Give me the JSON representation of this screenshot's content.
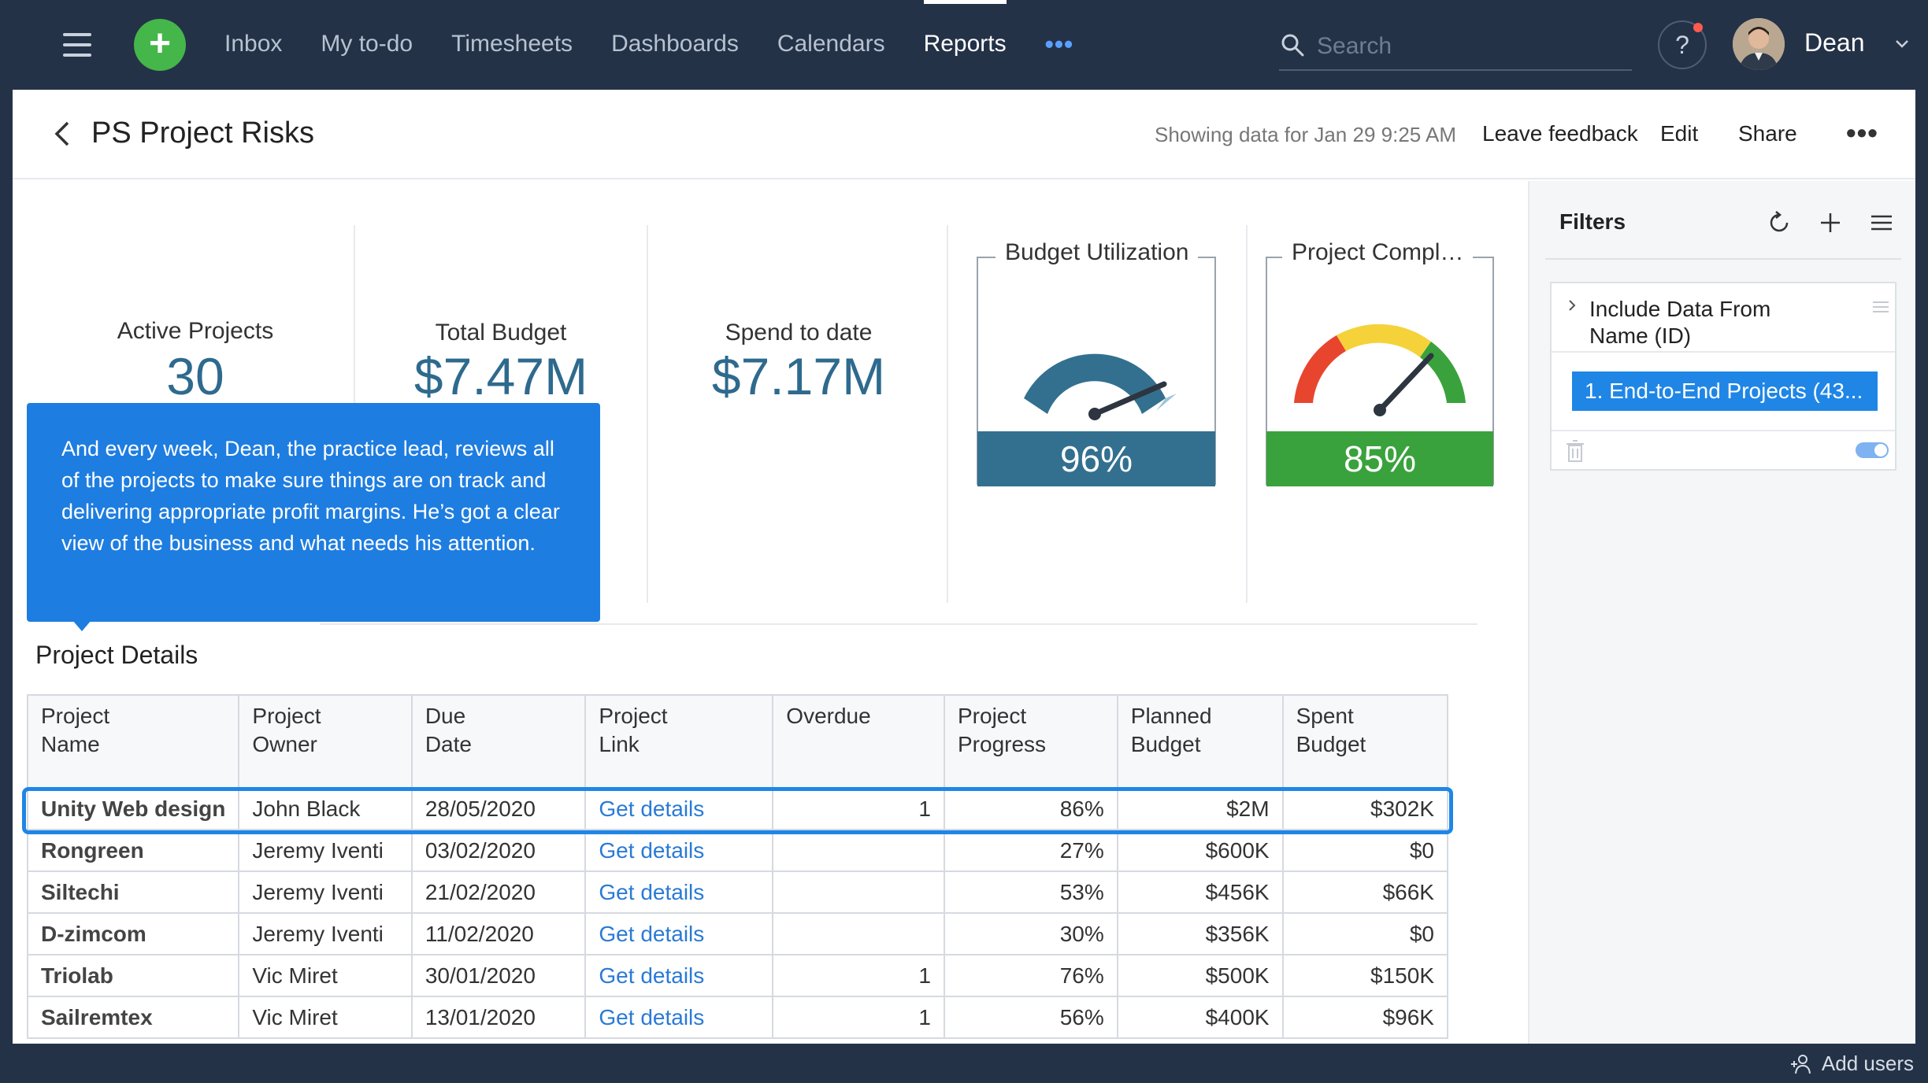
{
  "topbar": {
    "nav": [
      {
        "label": "Inbox"
      },
      {
        "label": "My to-do"
      },
      {
        "label": "Timesheets"
      },
      {
        "label": "Dashboards"
      },
      {
        "label": "Calendars"
      },
      {
        "label": "Reports",
        "active": true
      }
    ],
    "more_label": "•••",
    "search_placeholder": "Search",
    "help_label": "?",
    "user_name": "Dean"
  },
  "header": {
    "title": "PS Project Risks",
    "showing": "Showing data for Jan 29 9:25 AM",
    "leave_feedback": "Leave feedback",
    "edit": "Edit",
    "share": "Share",
    "more": "•••"
  },
  "kpis": {
    "active_projects": {
      "label": "Active Projects",
      "value": "30"
    },
    "total_budget": {
      "label": "Total Budget",
      "value": "$7.47M"
    },
    "spend_to_date": {
      "label": "Spend to date",
      "value": "$7.17M"
    }
  },
  "gauges": {
    "budget": {
      "title": "Budget Utilization",
      "value_label": "96%",
      "value": 96,
      "color": "#33708f"
    },
    "completion": {
      "title": "Project Compl…",
      "value_label": "85%",
      "value": 85,
      "color": "#3aa23c"
    }
  },
  "tooltip": {
    "text": "And every week, Dean, the practice lead, reviews all of the projects to make sure things are on track and delivering appropriate profit margins. He’s got a clear view of the business and what needs his attention."
  },
  "table": {
    "section_title": "Project Details",
    "columns": [
      [
        "Project",
        "Name"
      ],
      [
        "Project",
        "Owner"
      ],
      [
        "Due",
        "Date"
      ],
      [
        "Project",
        "Link"
      ],
      [
        "Overdue",
        ""
      ],
      [
        "Project",
        "Progress"
      ],
      [
        "Planned",
        "Budget"
      ],
      [
        "Spent",
        "Budget"
      ]
    ],
    "rows": [
      {
        "name": "Unity Web design",
        "owner": "John Black",
        "due": "28/05/2020",
        "link": "Get details",
        "overdue": "1",
        "progress": "86%",
        "planned": "$2M",
        "spent": "$302K"
      },
      {
        "name": "Rongreen",
        "owner": "Jeremy Iventi",
        "due": "03/02/2020",
        "link": "Get details",
        "overdue": "",
        "progress": "27%",
        "planned": "$600K",
        "spent": "$0"
      },
      {
        "name": "Siltechi",
        "owner": "Jeremy Iventi",
        "due": "21/02/2020",
        "link": "Get details",
        "overdue": "",
        "progress": "53%",
        "planned": "$456K",
        "spent": "$66K"
      },
      {
        "name": "D-zimcom",
        "owner": "Jeremy Iventi",
        "due": "11/02/2020",
        "link": "Get details",
        "overdue": "",
        "progress": "30%",
        "planned": "$356K",
        "spent": "$0"
      },
      {
        "name": "Triolab",
        "owner": "Vic Miret",
        "due": "30/01/2020",
        "link": "Get details",
        "overdue": "1",
        "progress": "76%",
        "planned": "$500K",
        "spent": "$150K"
      },
      {
        "name": "Sailremtex",
        "owner": "Vic Miret",
        "due": "13/01/2020",
        "link": "Get details",
        "overdue": "1",
        "progress": "56%",
        "planned": "$400K",
        "spent": "$96K"
      }
    ]
  },
  "filters": {
    "title": "Filters",
    "filter_name": "Include Data From Name (ID)",
    "chip": "1. End-to-End Projects (43..."
  },
  "bottombar": {
    "add_users": "Add users"
  }
}
